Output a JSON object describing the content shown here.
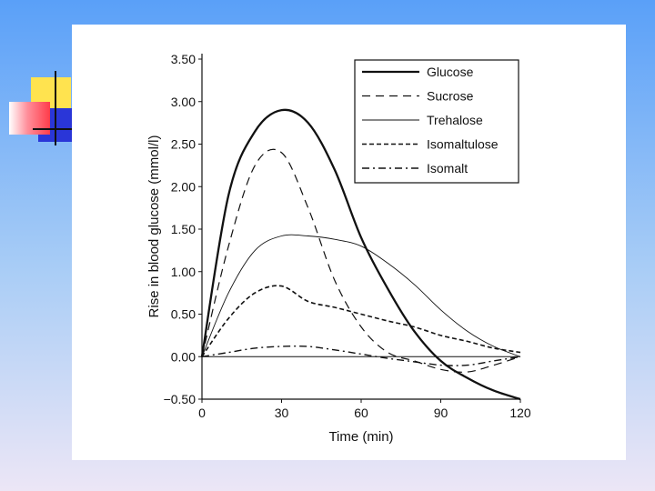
{
  "chart_data": {
    "type": "line",
    "xlabel": "Time (min)",
    "ylabel": "Rise in blood glucose (mmol/l)",
    "xlim": [
      0,
      120
    ],
    "ylim": [
      -0.5,
      3.5
    ],
    "xticks": [
      0,
      30,
      60,
      90,
      120
    ],
    "xtick_labels": [
      "0",
      "30",
      "60",
      "90",
      "120"
    ],
    "yticks": [
      -0.5,
      0,
      0.5,
      1,
      1.5,
      2,
      2.5,
      3,
      3.5
    ],
    "ytick_labels": [
      "−0.50",
      "0.00",
      "0.50",
      "1.00",
      "1.50",
      "2.00",
      "2.50",
      "3.00",
      "3.50"
    ],
    "grid": false,
    "legend_position": "top-right",
    "series": [
      {
        "name": "Glucose",
        "style": "solid-thick",
        "x": [
          0,
          10,
          20,
          30,
          40,
          50,
          60,
          70,
          80,
          90,
          100,
          110,
          120
        ],
        "y": [
          0,
          1.9,
          2.65,
          2.9,
          2.75,
          2.2,
          1.4,
          0.8,
          0.3,
          -0.05,
          -0.25,
          -0.4,
          -0.5
        ]
      },
      {
        "name": "Sucrose",
        "style": "dashed",
        "x": [
          0,
          10,
          20,
          30,
          40,
          50,
          60,
          70,
          80,
          90,
          100,
          110,
          120
        ],
        "y": [
          0,
          1.3,
          2.25,
          2.4,
          1.75,
          0.9,
          0.35,
          0.05,
          -0.05,
          -0.15,
          -0.18,
          -0.1,
          0.0
        ]
      },
      {
        "name": "Trehalose",
        "style": "solid-thin",
        "x": [
          0,
          10,
          20,
          30,
          40,
          50,
          60,
          70,
          80,
          90,
          100,
          110,
          120
        ],
        "y": [
          0,
          0.75,
          1.25,
          1.42,
          1.42,
          1.38,
          1.3,
          1.1,
          0.85,
          0.55,
          0.3,
          0.12,
          0.0
        ]
      },
      {
        "name": "Isomaltulose",
        "style": "dashed-short",
        "x": [
          0,
          10,
          20,
          30,
          40,
          50,
          60,
          70,
          80,
          90,
          100,
          110,
          120
        ],
        "y": [
          0,
          0.45,
          0.75,
          0.83,
          0.65,
          0.58,
          0.5,
          0.42,
          0.35,
          0.25,
          0.18,
          0.1,
          0.05
        ]
      },
      {
        "name": "Isomalt",
        "style": "dash-dot",
        "x": [
          0,
          10,
          20,
          30,
          40,
          50,
          60,
          70,
          80,
          90,
          100,
          110,
          120
        ],
        "y": [
          0,
          0.05,
          0.1,
          0.12,
          0.12,
          0.08,
          0.03,
          -0.02,
          -0.06,
          -0.1,
          -0.1,
          -0.05,
          0.0
        ]
      }
    ]
  },
  "colors": {
    "accent_yellow": "#ffe34f",
    "accent_red": "#ff3c4a",
    "accent_blue": "#2a36d8",
    "line": "#111111"
  }
}
